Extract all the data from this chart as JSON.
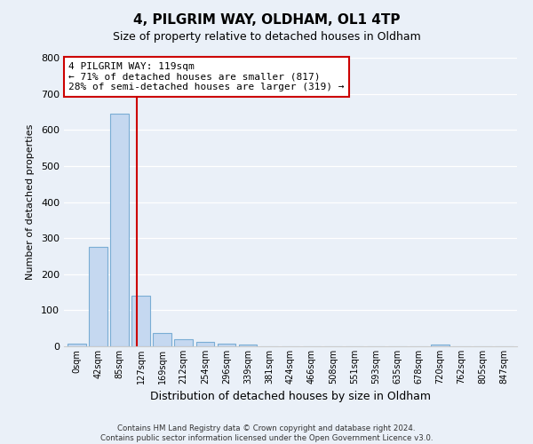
{
  "title": "4, PILGRIM WAY, OLDHAM, OL1 4TP",
  "subtitle": "Size of property relative to detached houses in Oldham",
  "xlabel": "Distribution of detached houses by size in Oldham",
  "ylabel": "Number of detached properties",
  "bar_labels": [
    "0sqm",
    "42sqm",
    "85sqm",
    "127sqm",
    "169sqm",
    "212sqm",
    "254sqm",
    "296sqm",
    "339sqm",
    "381sqm",
    "424sqm",
    "466sqm",
    "508sqm",
    "551sqm",
    "593sqm",
    "635sqm",
    "678sqm",
    "720sqm",
    "762sqm",
    "805sqm",
    "847sqm"
  ],
  "bar_values": [
    8,
    275,
    645,
    140,
    38,
    20,
    12,
    7,
    5,
    0,
    0,
    0,
    0,
    0,
    0,
    0,
    0,
    5,
    0,
    0,
    0
  ],
  "bar_color": "#c5d8f0",
  "bar_edge_color": "#7aadd4",
  "property_line_color": "#cc0000",
  "annotation_line1": "4 PILGRIM WAY: 119sqm",
  "annotation_line2": "← 71% of detached houses are smaller (817)",
  "annotation_line3": "28% of semi-detached houses are larger (319) →",
  "ylim": [
    0,
    800
  ],
  "yticks": [
    0,
    100,
    200,
    300,
    400,
    500,
    600,
    700,
    800
  ],
  "footer_text": "Contains HM Land Registry data © Crown copyright and database right 2024.\nContains public sector information licensed under the Open Government Licence v3.0.",
  "background_color": "#eaf0f8",
  "grid_color": "#ffffff",
  "title_fontsize": 11,
  "subtitle_fontsize": 9
}
